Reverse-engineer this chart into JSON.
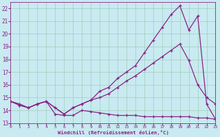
{
  "xlabel": "Windchill (Refroidissement éolien,°C)",
  "background_color": "#c8eaf0",
  "grid_color": "#a0ccbb",
  "line_color": "#882288",
  "xmin": 0,
  "xmax": 23,
  "ymin": 13,
  "ymax": 22.5,
  "series1_x": [
    0,
    1,
    2,
    3,
    4,
    5,
    6,
    7,
    8,
    9,
    10,
    11,
    12,
    13,
    14,
    15,
    16,
    17,
    18,
    19,
    20,
    21,
    22,
    23
  ],
  "series1_y": [
    14.7,
    14.5,
    14.2,
    14.5,
    14.7,
    13.7,
    13.6,
    13.6,
    14.0,
    13.9,
    13.8,
    13.7,
    13.6,
    13.6,
    13.6,
    13.5,
    13.5,
    13.5,
    13.5,
    13.5,
    13.5,
    13.4,
    13.4,
    13.3
  ],
  "series2_x": [
    0,
    1,
    2,
    3,
    4,
    5,
    6,
    7,
    8,
    9,
    10,
    11,
    12,
    13,
    14,
    15,
    16,
    17,
    18,
    19,
    20,
    21,
    22,
    23
  ],
  "series2_y": [
    14.7,
    14.4,
    14.2,
    14.5,
    14.7,
    14.2,
    13.7,
    14.2,
    14.5,
    14.8,
    15.5,
    15.8,
    16.5,
    17.0,
    17.5,
    18.5,
    19.5,
    20.5,
    21.5,
    22.2,
    20.3,
    21.4,
    14.5,
    13.3
  ],
  "series3_x": [
    0,
    1,
    2,
    3,
    4,
    5,
    6,
    7,
    8,
    9,
    10,
    11,
    12,
    13,
    14,
    15,
    16,
    17,
    18,
    19,
    20,
    21,
    22,
    23
  ],
  "series3_y": [
    14.7,
    14.4,
    14.2,
    14.5,
    14.7,
    14.2,
    13.7,
    14.2,
    14.5,
    14.8,
    15.0,
    15.3,
    15.8,
    16.3,
    16.7,
    17.2,
    17.7,
    18.2,
    18.7,
    19.2,
    17.9,
    16.0,
    15.0,
    14.5
  ],
  "yticks": [
    13,
    14,
    15,
    16,
    17,
    18,
    19,
    20,
    21,
    22
  ],
  "xticks": [
    0,
    1,
    2,
    3,
    4,
    5,
    6,
    7,
    8,
    9,
    10,
    11,
    12,
    13,
    14,
    15,
    16,
    17,
    18,
    19,
    20,
    21,
    22,
    23
  ]
}
